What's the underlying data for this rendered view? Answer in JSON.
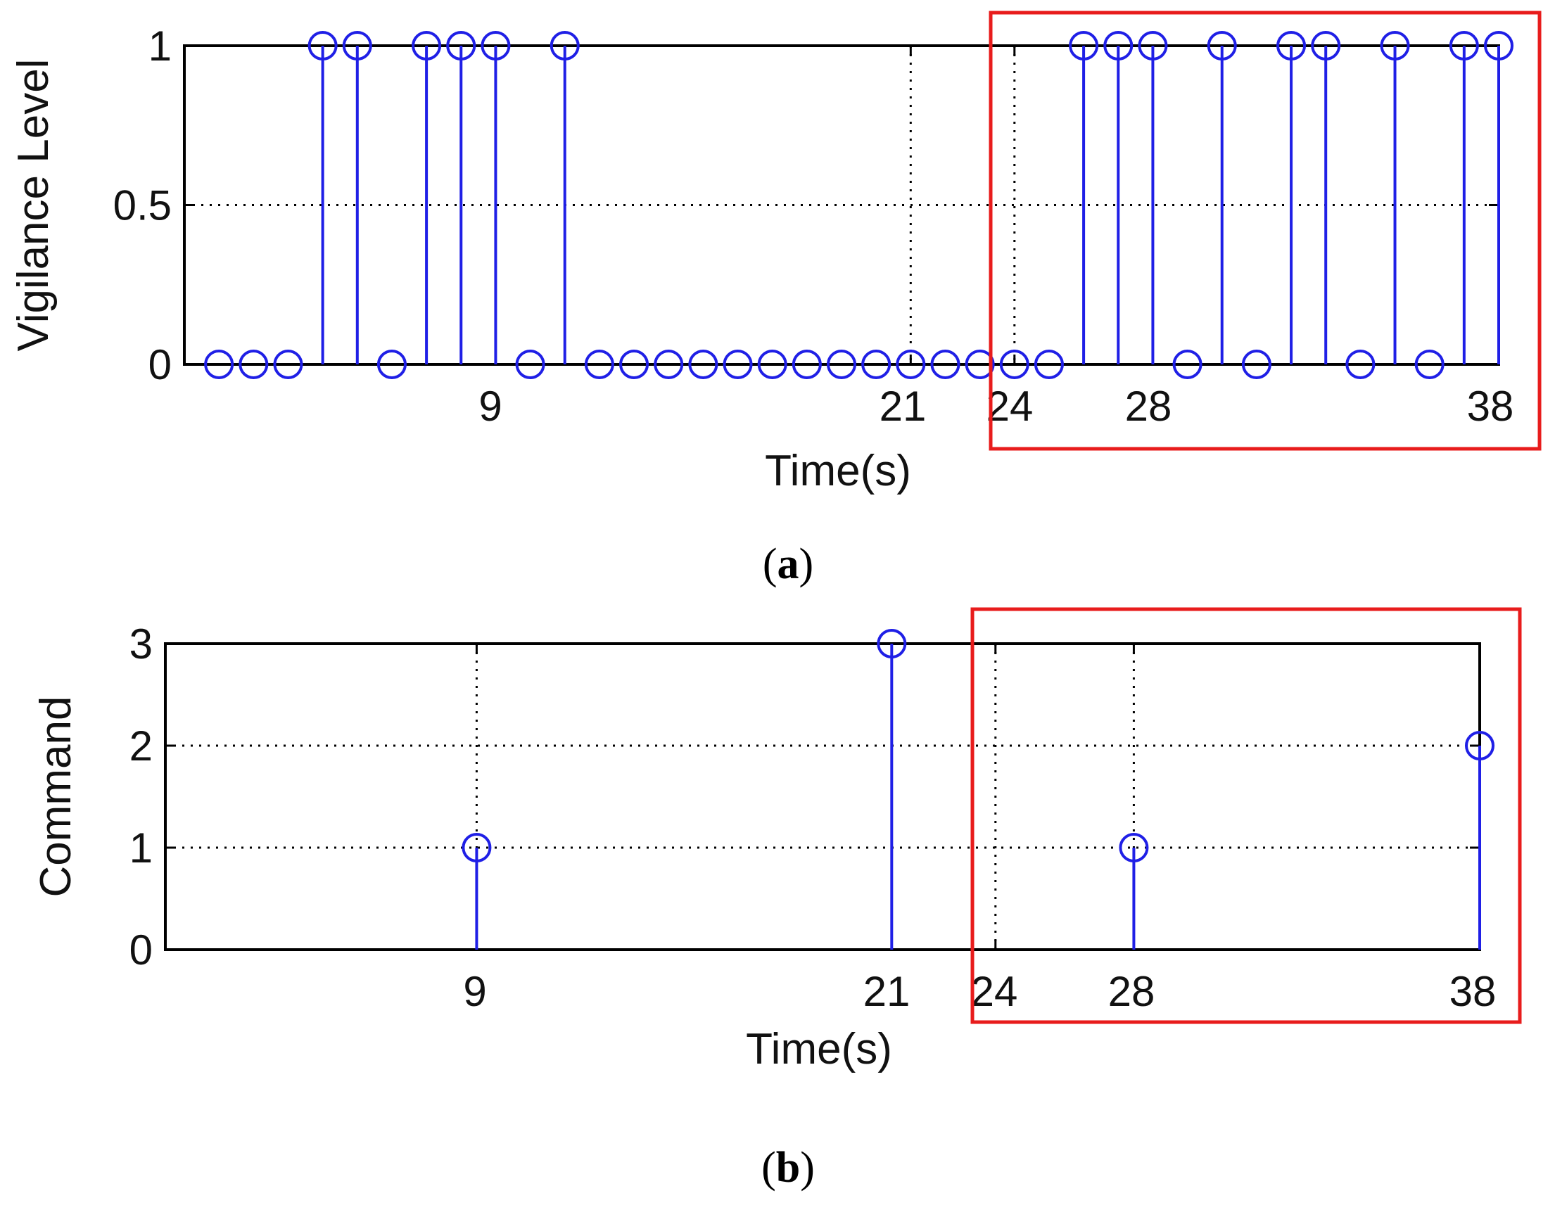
{
  "colors": {
    "stem": "#1f1fe6",
    "axis": "#000000",
    "grid": "#000000",
    "highlight": "#e81c1c"
  },
  "chart_data": [
    {
      "type": "stem",
      "panel_label": "a",
      "xlabel": "Time(s)",
      "ylabel": "Vigilance Level",
      "xlim": [
        0,
        38
      ],
      "ylim": [
        0,
        1
      ],
      "xticks": [
        9,
        21,
        24,
        28,
        38
      ],
      "yticks": [
        0,
        0.5,
        1
      ],
      "ytick_labels": [
        "0",
        "0.5",
        "1"
      ],
      "grid": "dotted at ticks",
      "x": [
        1,
        2,
        3,
        4,
        5,
        6,
        7,
        8,
        9,
        10,
        11,
        12,
        13,
        14,
        15,
        16,
        17,
        18,
        19,
        20,
        21,
        22,
        23,
        24,
        25,
        26,
        27,
        28,
        29,
        30,
        31,
        32,
        33,
        34,
        35,
        36,
        37,
        38
      ],
      "values": [
        0,
        0,
        0,
        1,
        1,
        0,
        1,
        1,
        1,
        0,
        1,
        0,
        0,
        0,
        0,
        0,
        0,
        0,
        0,
        0,
        0,
        0,
        0,
        0,
        0,
        1,
        1,
        1,
        0,
        1,
        0,
        1,
        1,
        0,
        1,
        0,
        1,
        1
      ],
      "highlight_box": "red rectangle around x from 24 to 38"
    },
    {
      "type": "stem",
      "panel_label": "b",
      "xlabel": "Time(s)",
      "ylabel": "Command",
      "xlim": [
        0,
        38
      ],
      "ylim": [
        0,
        3
      ],
      "xticks": [
        9,
        21,
        24,
        28,
        38
      ],
      "yticks": [
        0,
        1,
        2,
        3
      ],
      "ytick_labels": [
        "0",
        "1",
        "2",
        "3"
      ],
      "grid": "dotted at ticks",
      "x": [
        9,
        21,
        28,
        38
      ],
      "values": [
        1,
        3,
        1,
        2
      ],
      "highlight_box": "red rectangle around x from 24 to 38"
    }
  ]
}
